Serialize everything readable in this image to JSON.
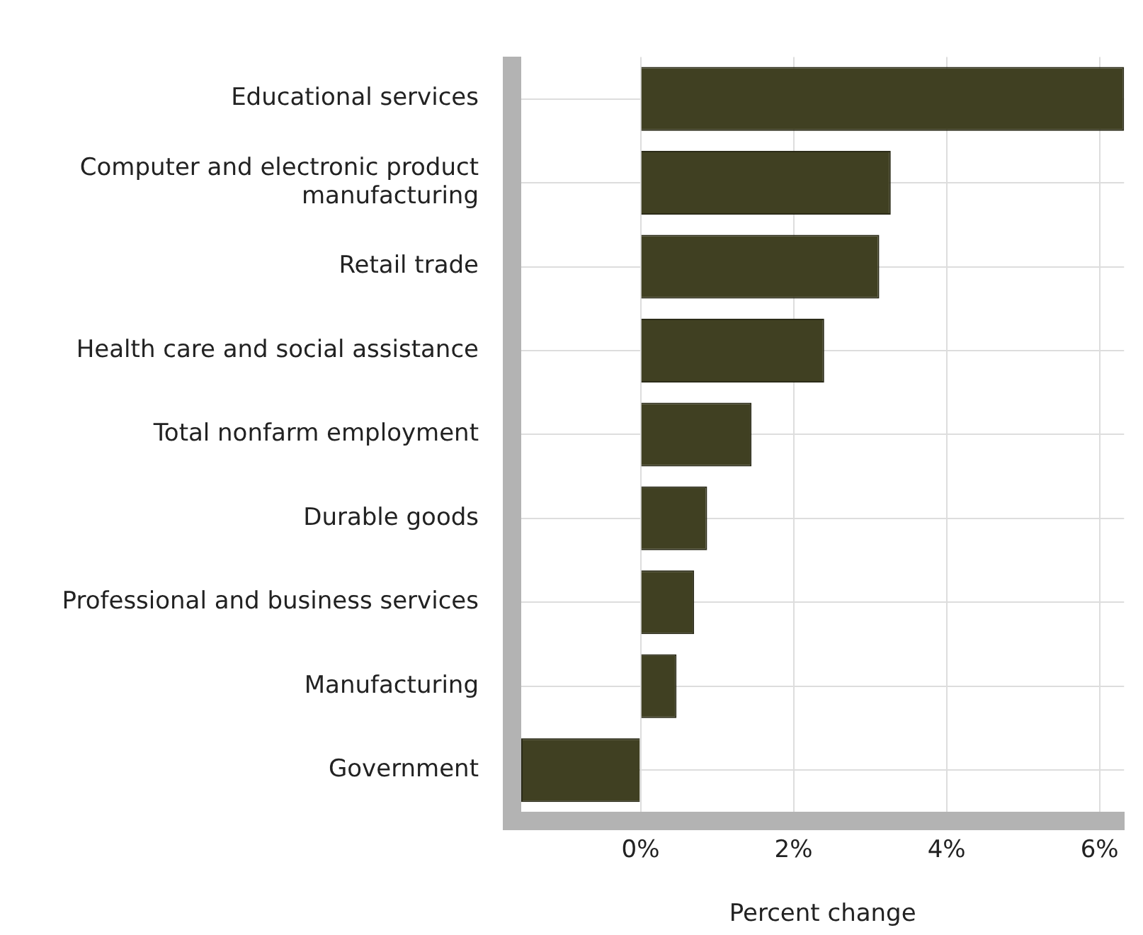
{
  "chart_data": {
    "type": "bar",
    "orientation": "horizontal",
    "xlabel": "Percent change",
    "categories": [
      "Educational services",
      "Computer and electronic product manufacturing",
      "Retail trade",
      "Health care and social assistance",
      "Total nonfarm employment",
      "Durable goods",
      "Professional and business services",
      "Manufacturing",
      "Government"
    ],
    "values": [
      6.32,
      3.27,
      3.12,
      2.4,
      1.45,
      0.87,
      0.7,
      0.47,
      -1.56
    ],
    "color": "#404022",
    "xlim": [
      -1.56,
      6.32
    ],
    "xticks": [
      {
        "value": 0,
        "label": "0%"
      },
      {
        "value": 2,
        "label": "2%"
      },
      {
        "value": 4,
        "label": "4%"
      },
      {
        "value": 6,
        "label": "6%"
      }
    ],
    "grid": true,
    "legend": false
  }
}
